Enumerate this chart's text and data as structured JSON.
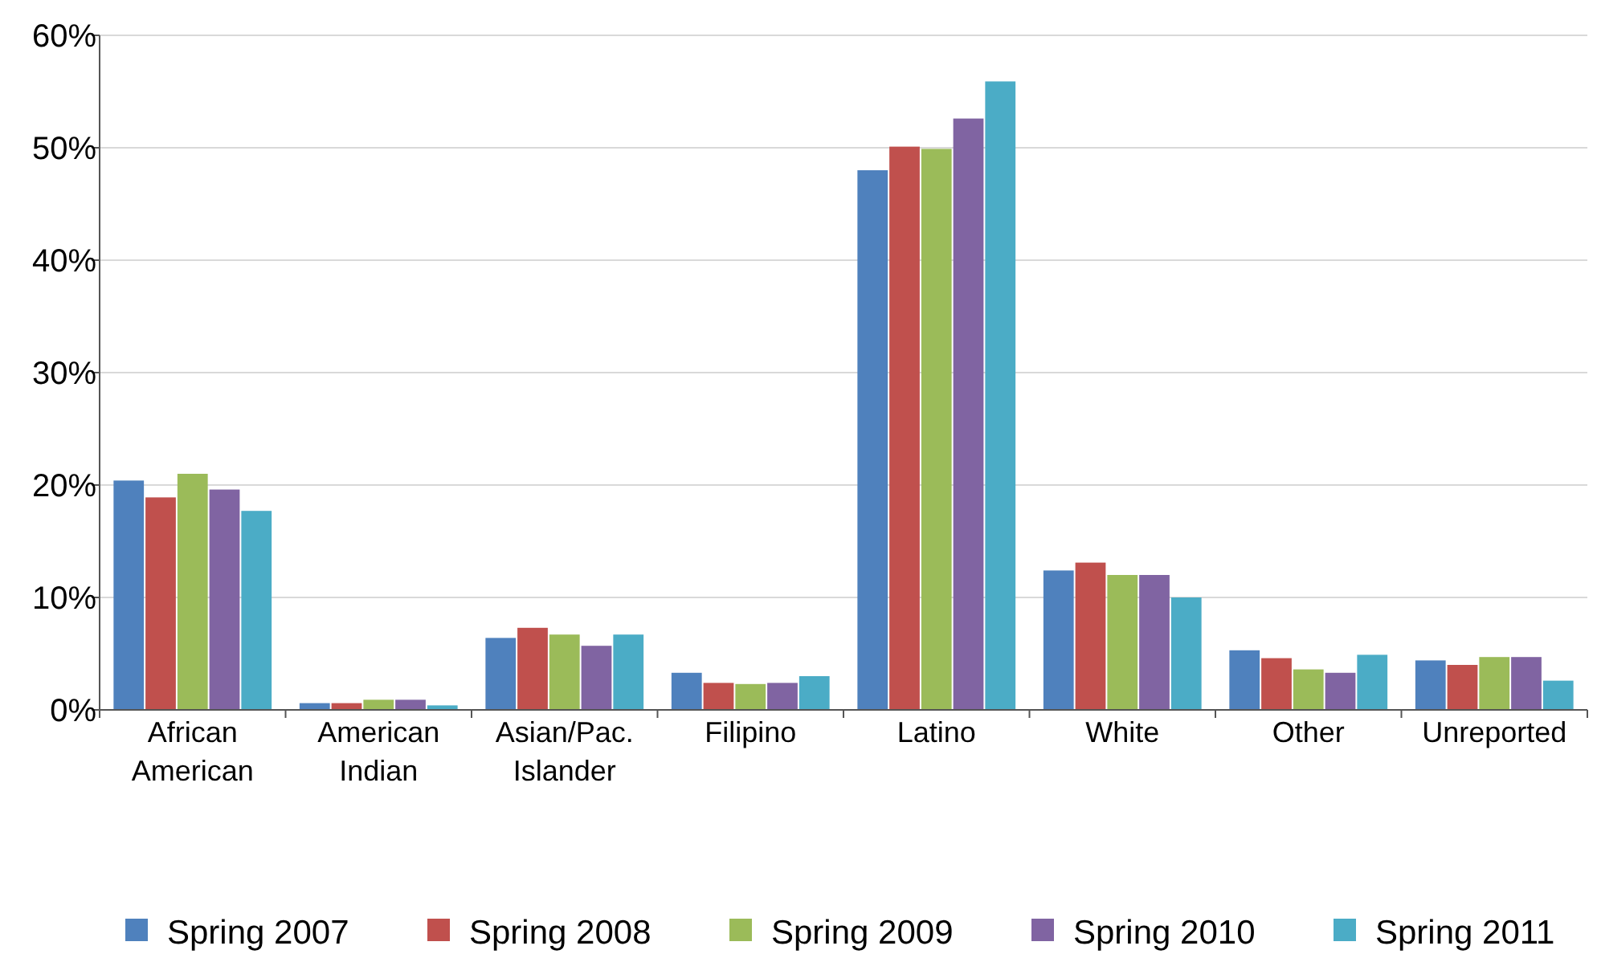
{
  "chart_data": {
    "type": "bar",
    "categories": [
      "African American",
      "American Indian",
      "Asian/Pac. Islander",
      "Filipino",
      "Latino",
      "White",
      "Other",
      "Unreported"
    ],
    "series": [
      {
        "name": "Spring 2007",
        "color": "#4f81bd",
        "values": [
          20.4,
          0.6,
          6.4,
          3.3,
          48.0,
          12.4,
          5.3,
          4.4
        ]
      },
      {
        "name": "Spring 2008",
        "color": "#c0504d",
        "values": [
          18.9,
          0.6,
          7.3,
          2.4,
          50.1,
          13.1,
          4.6,
          4.0
        ]
      },
      {
        "name": "Spring 2009",
        "color": "#9bbb59",
        "values": [
          21.0,
          0.9,
          6.7,
          2.3,
          49.9,
          12.0,
          3.6,
          4.7
        ]
      },
      {
        "name": "Spring 2010",
        "color": "#8064a2",
        "values": [
          19.6,
          0.9,
          5.7,
          2.4,
          52.6,
          12.0,
          3.3,
          4.7
        ]
      },
      {
        "name": "Spring 2011",
        "color": "#4bacc6",
        "values": [
          17.7,
          0.4,
          6.7,
          3.0,
          55.9,
          10.0,
          4.9,
          2.6
        ]
      }
    ],
    "ylim": [
      0,
      60
    ],
    "yticks": [
      {
        "value": 0,
        "label": "0%"
      },
      {
        "value": 10,
        "label": "10%"
      },
      {
        "value": 20,
        "label": "20%"
      },
      {
        "value": 30,
        "label": "30%"
      },
      {
        "value": 40,
        "label": "40%"
      },
      {
        "value": 50,
        "label": "50%"
      },
      {
        "value": 60,
        "label": "60%"
      }
    ],
    "grid": "y",
    "legend": "bottom"
  }
}
